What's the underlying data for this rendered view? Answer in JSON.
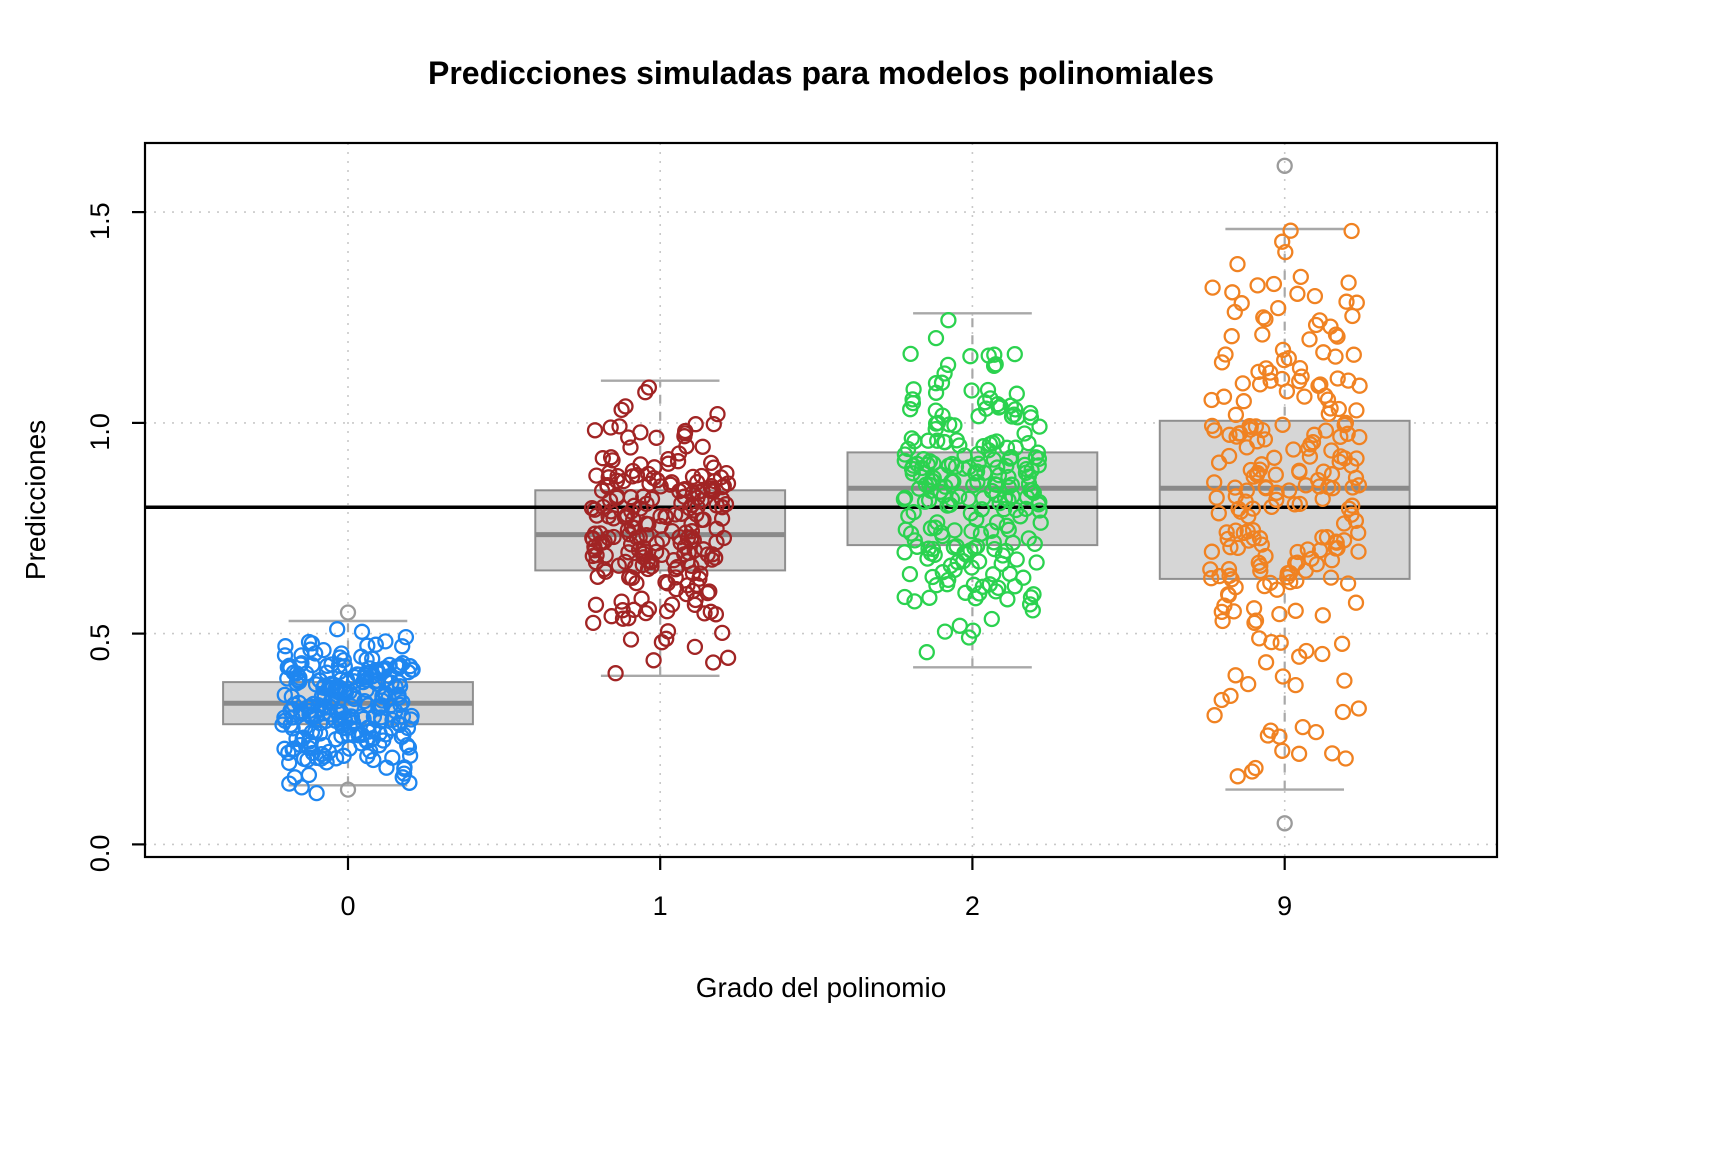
{
  "chart_data": {
    "type": "boxplot-jitter",
    "title": "Predicciones simuladas para modelos polinomiales",
    "xlabel": "Grado del polinomio",
    "ylabel": "Predicciones",
    "y_ticks": [
      0.0,
      0.5,
      1.0,
      1.5
    ],
    "y_tick_labels": [
      "0.0",
      "0.5",
      "1.0",
      "1.5"
    ],
    "ylim": [
      -0.03,
      1.664
    ],
    "xlim": [
      0.35,
      4.68
    ],
    "grid": true,
    "legend": "none",
    "background": "#ffffff",
    "frame_color": "#000000",
    "grid_color": "#c9c9c9",
    "box_fill": "#d6d6d6",
    "box_border": "#8f8f8f",
    "median_color": "#8a8a8a",
    "whisker_color": "#a8a8a8",
    "outlier_color": "#9b9b9b",
    "reference_line": {
      "y": 0.8,
      "color": "#000000",
      "width": 3.5
    },
    "groups": [
      {
        "label": "0",
        "color": "#1e86f0",
        "seed": 101,
        "box": {
          "whisker_low": 0.14,
          "q1": 0.285,
          "median": 0.335,
          "q3": 0.385,
          "whisker_high": 0.53
        },
        "outliers": [
          0.55,
          0.13
        ],
        "points": {
          "n": 250,
          "mean": 0.335,
          "sd": 0.09,
          "min": 0.12,
          "max": 0.55,
          "jitter": 0.21
        }
      },
      {
        "label": "1",
        "color": "#a12424",
        "seed": 202,
        "box": {
          "whisker_low": 0.4,
          "q1": 0.65,
          "median": 0.735,
          "q3": 0.84,
          "whisker_high": 1.1
        },
        "outliers": [],
        "points": {
          "n": 230,
          "mean": 0.745,
          "sd": 0.145,
          "min": 0.4,
          "max": 1.1,
          "jitter": 0.22
        }
      },
      {
        "label": "2",
        "color": "#2bd24f",
        "seed": 303,
        "box": {
          "whisker_low": 0.42,
          "q1": 0.71,
          "median": 0.845,
          "q3": 0.93,
          "whisker_high": 1.26
        },
        "outliers": [],
        "points": {
          "n": 230,
          "mean": 0.84,
          "sd": 0.17,
          "min": 0.43,
          "max": 1.26,
          "jitter": 0.22
        }
      },
      {
        "label": "9",
        "color": "#f08222",
        "seed": 404,
        "box": {
          "whisker_low": 0.13,
          "q1": 0.63,
          "median": 0.845,
          "q3": 1.005,
          "whisker_high": 1.46
        },
        "outliers": [
          1.61,
          0.05
        ],
        "points": {
          "n": 240,
          "mean": 0.86,
          "sd": 0.3,
          "min": 0.06,
          "max": 1.47,
          "jitter": 0.24
        }
      }
    ]
  }
}
